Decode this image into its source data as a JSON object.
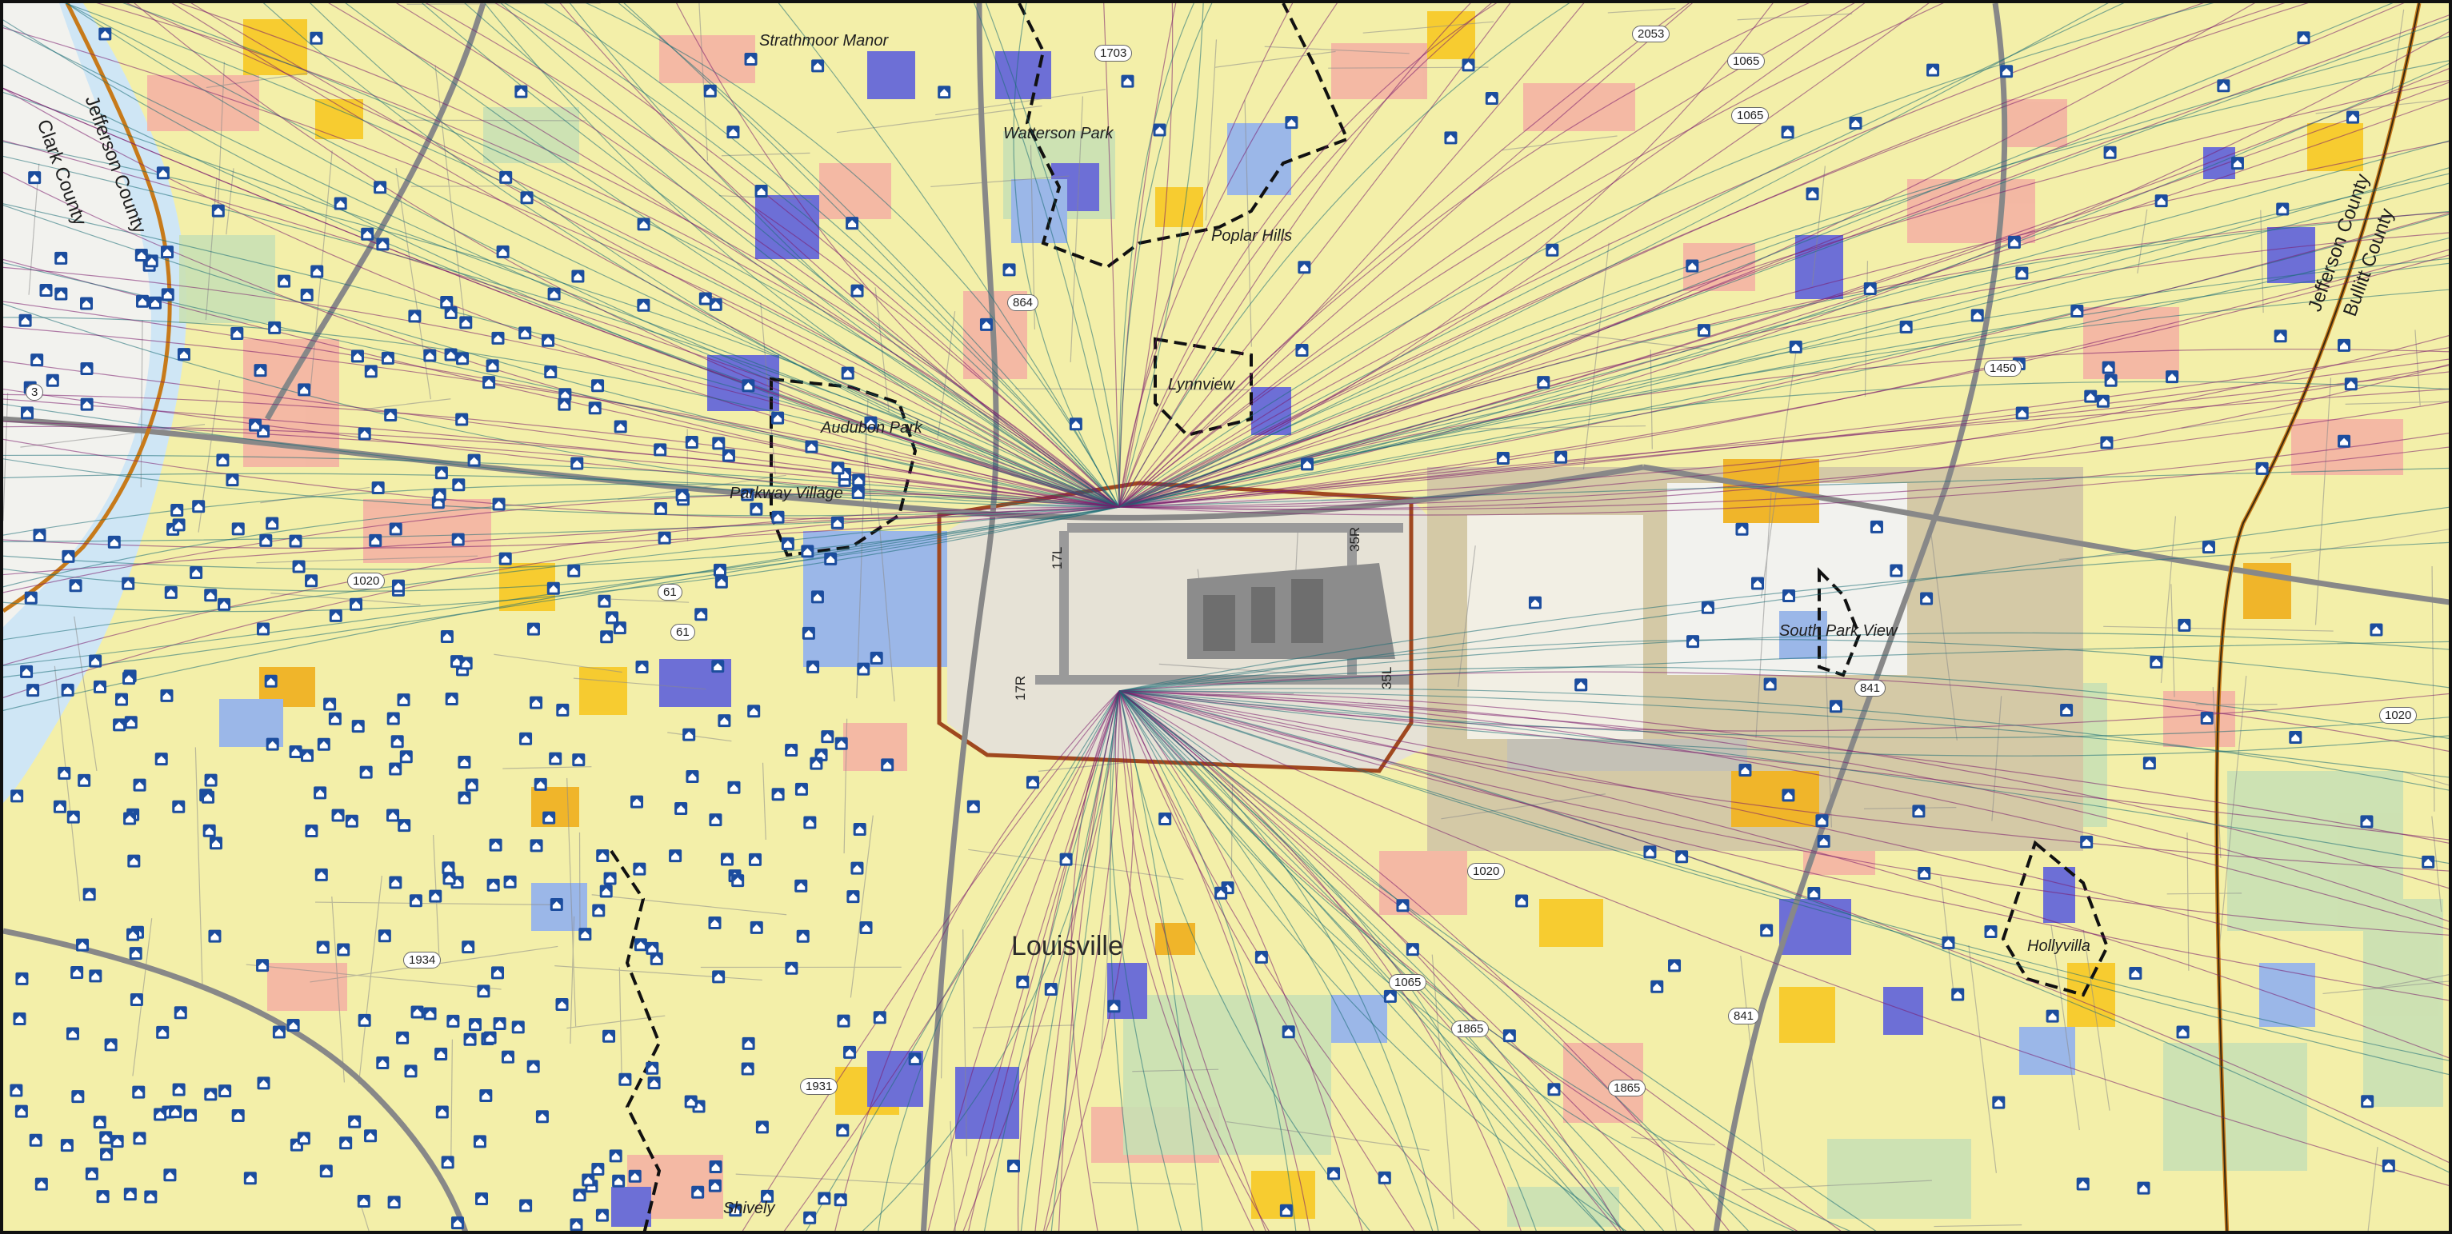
{
  "map": {
    "places": {
      "strathmoor_manor": "Strathmoor Manor",
      "watterson_park": "Watterson Park",
      "poplar_hills": "Poplar Hills",
      "lynnview": "Lynnview",
      "audubon_park": "Audubon Park",
      "parkway_village": "Parkway Village",
      "south_park_view": "South Park View",
      "louisville": "Louisville",
      "hollyvilla": "Hollyvilla",
      "shively": "Shively"
    },
    "counties": {
      "jefferson_west": "Jefferson County",
      "clark": "Clark County",
      "jefferson_east": "Jefferson County",
      "bullitt": "Bullitt County"
    },
    "routes": [
      "1703",
      "1065",
      "2053",
      "1065",
      "1020",
      "864",
      "61",
      "61",
      "1450",
      "841",
      "1020",
      "1020",
      "1065",
      "1931",
      "1865",
      "1865",
      "841",
      "1934",
      "3"
    ],
    "runways": [
      "35R",
      "35L",
      "17L",
      "17R"
    ],
    "colors": {
      "residential": "#f3efa9",
      "residential_light": "#f9f6c8",
      "commercial": "#f4b3a3",
      "industrial": "#6d6fd6",
      "public": "#9bb7e8",
      "parks": "#c9e0b4",
      "airport": "#d4c9a6",
      "orange_land": "#f0b52a",
      "river": "#cfe6f5",
      "flight_track_purple": "#7a1a6b",
      "flight_track_teal": "#1a6b75",
      "icon_blue": "#1c4d9e",
      "interstate": "#888888",
      "county_line": "#c77a1a"
    },
    "icons": [
      "house-icon",
      "school-icon",
      "church-icon",
      "hospital-icon",
      "library-icon"
    ]
  }
}
